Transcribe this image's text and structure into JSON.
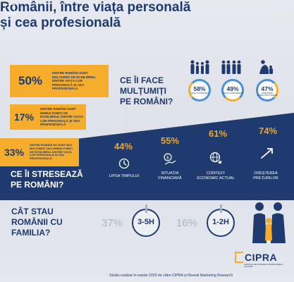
{
  "title": {
    "line1": "Românii, între viața personală",
    "line2": "și cea profesională"
  },
  "satisfaction": [
    {
      "pct": "50%",
      "text": "dintre români sunt mulțumiți de echilibrul dintre viața lor personală și cea profesională"
    },
    {
      "pct": "17%",
      "text": "dintre români sunt nemulțumiți de echilibrul dintre viața lor personală și cea profesională"
    },
    {
      "pct": "33%",
      "text": "dintre români nu sunt nici mulțumiți, nici nemulțumiți de echilibrul dintre viața lor personală și cea profesională"
    }
  ],
  "happy": {
    "question_line1": "Ce îi face",
    "question_line2": "mulțumiți",
    "question_line3": "pe români?",
    "items": [
      {
        "pct": "58%",
        "label": "familia și prietenii",
        "icon": "family-icon"
      },
      {
        "pct": "49%",
        "label": "familia și partenerul",
        "icon": "couple-icon"
      },
      {
        "pct": "47%",
        "label": "momentele petrecute în familie",
        "icon": "parent-child-icon"
      }
    ]
  },
  "stress": {
    "question_line1": "Ce îi stresează",
    "question_line2": "pe români?",
    "items": [
      {
        "pct": "44%",
        "label_line1": "Lipsa timpului",
        "label_line2": "",
        "icon": "clock-icon"
      },
      {
        "pct": "55%",
        "label_line1": "Situația",
        "label_line2": "financiară",
        "icon": "money-icon"
      },
      {
        "pct": "61%",
        "label_line1": "Context",
        "label_line2": "economic actual",
        "icon": "globe-icon"
      },
      {
        "pct": "74%",
        "label_line1": "Creșterea",
        "label_line2": "prețurilor",
        "icon": "trend-up-icon"
      }
    ]
  },
  "family_time": {
    "question_line1": "Cât stau",
    "question_line2": "românii cu",
    "question_line3": "familia?",
    "items": [
      {
        "pct": "37%",
        "hours": "3-5H"
      },
      {
        "pct": "16%",
        "hours": "1-2H"
      }
    ]
  },
  "brand": {
    "name": "CIPRA",
    "tagline": "centrul de inovare și promovare a culturii"
  },
  "footer": "Studiu realizat în martie 2023 de către CIPRA și Reveal Marketing Research",
  "colors": {
    "navy": "#1f3a6e",
    "orange": "#f6ad2c",
    "ring_blue": "#4a90d9",
    "ring_orange": "#f6ad2c"
  }
}
